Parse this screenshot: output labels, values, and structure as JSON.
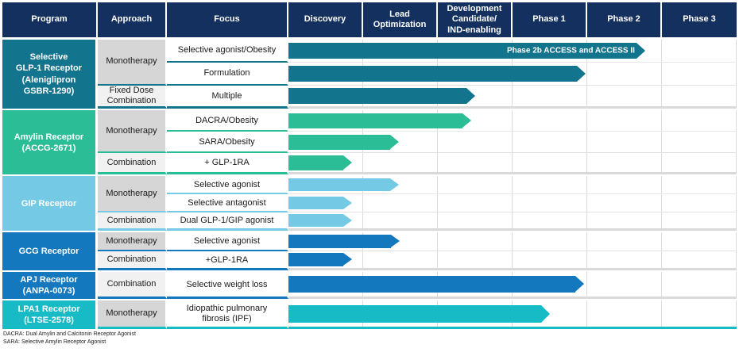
{
  "colors": {
    "header_bg": "#13305F",
    "header_text": "#FFFFFF",
    "approach_dark": "#D6D6D6",
    "approach_light": "#F1F1F1",
    "grid_line": "#DCDCDC",
    "group_separator_gray": "#D9D9D9"
  },
  "header": {
    "columns": [
      "Program",
      "Approach",
      "Focus",
      "Discovery",
      "Lead\nOptimization",
      "Development\nCandidate/\nIND-enabling",
      "Phase 1",
      "Phase 2",
      "Phase 3"
    ]
  },
  "stages": [
    "Discovery",
    "Lead Optimization",
    "Development Candidate/IND-enabling",
    "Phase 1",
    "Phase 2",
    "Phase 3"
  ],
  "groups": [
    {
      "program": "Selective\nGLP-1 Receptor\n(Aleniglipron\nGSBR-1290)",
      "color": "#13748E",
      "sections": [
        {
          "approach": "Monotherapy",
          "shade": "dark",
          "rows": [
            {
              "focus": "Selective agonist/Obesity",
              "bar_end_pct": 79.6,
              "bar_label": "Phase 2b ACCESS and ACCESS II",
              "stage_reached": "Phase 2"
            },
            {
              "focus": "Formulation",
              "bar_end_pct": 66.3,
              "bar_label": "",
              "stage_reached": "Phase 1 end"
            }
          ]
        },
        {
          "approach": "Fixed Dose\nCombination",
          "shade": "light",
          "rows": [
            {
              "focus": "Multiple",
              "bar_end_pct": 41.7,
              "bar_label": "",
              "stage_reached": "Development Candidate/IND-enabling"
            }
          ]
        }
      ]
    },
    {
      "program": "Amylin Receptor\n(ACCG-2671)",
      "color": "#2BBE96",
      "sections": [
        {
          "approach": "Monotherapy",
          "shade": "dark",
          "rows": [
            {
              "focus": "DACRA/Obesity",
              "bar_end_pct": 40.8,
              "bar_label": "",
              "stage_reached": "Development Candidate/IND-enabling"
            },
            {
              "focus": "SARA/Obesity",
              "bar_end_pct": 24.6,
              "bar_label": "",
              "stage_reached": "Lead Optimization"
            }
          ]
        },
        {
          "approach": "Combination",
          "shade": "light",
          "rows": [
            {
              "focus": "+ GLP-1RA",
              "bar_end_pct": 14.2,
              "bar_label": "",
              "stage_reached": "Discovery end"
            }
          ]
        }
      ]
    },
    {
      "program": "GIP Receptor",
      "color": "#74C9E4",
      "sections": [
        {
          "approach": "Monotherapy",
          "shade": "dark",
          "rows": [
            {
              "focus": "Selective agonist",
              "bar_end_pct": 24.6,
              "bar_label": "",
              "stage_reached": "Lead Optimization"
            },
            {
              "focus": "Selective antagonist",
              "bar_end_pct": 14.2,
              "bar_label": "",
              "stage_reached": "Discovery end"
            }
          ]
        },
        {
          "approach": "Combination",
          "shade": "light",
          "rows": [
            {
              "focus": "Dual GLP-1/GIP agonist",
              "bar_end_pct": 14.2,
              "bar_label": "",
              "stage_reached": "Discovery end"
            }
          ]
        }
      ]
    },
    {
      "program": "GCG Receptor",
      "color": "#1478BE",
      "sections": [
        {
          "approach": "Monotherapy",
          "shade": "dark",
          "rows": [
            {
              "focus": "Selective agonist",
              "bar_end_pct": 24.8,
              "bar_label": "",
              "stage_reached": "Lead Optimization"
            }
          ]
        },
        {
          "approach": "Combination",
          "shade": "light",
          "rows": [
            {
              "focus": "+GLP-1RA",
              "bar_end_pct": 14.2,
              "bar_label": "",
              "stage_reached": "Discovery end"
            }
          ]
        }
      ]
    },
    {
      "program": "APJ Receptor\n(ANPA-0073)",
      "color": "#1478BE",
      "sections": [
        {
          "approach": "Combination",
          "shade": "light",
          "rows": [
            {
              "focus": "Selective weight loss",
              "bar_end_pct": 66.0,
              "bar_label": "",
              "stage_reached": "Phase 1 end"
            }
          ]
        }
      ]
    },
    {
      "program": "LPA1 Receptor\n(LTSE-2578)",
      "color": "#17BBC6",
      "sections": [
        {
          "approach": "Monotherapy",
          "shade": "dark",
          "rows": [
            {
              "focus": "Idiopathic pulmonary\nfibrosis (IPF)",
              "bar_end_pct": 58.3,
              "bar_label": "",
              "stage_reached": "Phase 1"
            }
          ]
        }
      ]
    }
  ],
  "footnotes": [
    "DACRA: Dual Amylin and Calcitonin Receptor Agonist",
    "SARA: Selective Amylin Receptor Agonist"
  ]
}
